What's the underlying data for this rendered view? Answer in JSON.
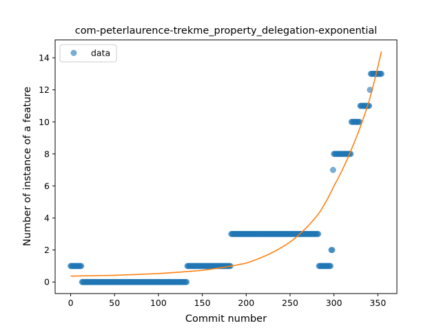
{
  "chart_data": {
    "type": "scatter",
    "title": "com-peterlaurence-trekme_property_delegation-exponential",
    "xlabel": "Commit number",
    "ylabel": "Number of instance of a feature",
    "xlim": [
      -17.7,
      371.7
    ],
    "ylim": [
      -0.72,
      15.12
    ],
    "xticks": [
      0,
      50,
      100,
      150,
      200,
      250,
      300,
      350
    ],
    "yticks": [
      0,
      2,
      4,
      6,
      8,
      10,
      12,
      14
    ],
    "legend": {
      "placement": "upper-left",
      "entries": [
        "data"
      ]
    },
    "colors": {
      "data": "#1f77b4",
      "fit": "#ff7f0e"
    },
    "data_segments": [
      {
        "x_start": 0,
        "x_end": 12,
        "y": 1
      },
      {
        "x_start": 13,
        "x_end": 132,
        "y": 0
      },
      {
        "x_start": 133,
        "x_end": 182,
        "y": 1
      },
      {
        "x_start": 183,
        "x_end": 282,
        "y": 3
      },
      {
        "x_start": 283,
        "x_end": 296,
        "y": 1
      },
      {
        "x_start": 297,
        "x_end": 298,
        "y": 2
      },
      {
        "x_start": 299,
        "x_end": 299,
        "y": 7
      },
      {
        "x_start": 300,
        "x_end": 319,
        "y": 8
      },
      {
        "x_start": 320,
        "x_end": 329,
        "y": 10
      },
      {
        "x_start": 330,
        "x_end": 340,
        "y": 11
      },
      {
        "x_start": 341,
        "x_end": 341,
        "y": 12
      },
      {
        "x_start": 342,
        "x_end": 354,
        "y": 13
      }
    ],
    "fit_curve": {
      "name": "exponential fit",
      "x": [
        0,
        50,
        100,
        150,
        183,
        200,
        250,
        283,
        300,
        320,
        340,
        354
      ],
      "y": [
        0.37,
        0.42,
        0.53,
        0.73,
        1.0,
        1.18,
        2.5,
        4.3,
        6.0,
        8.3,
        11.3,
        14.4
      ]
    }
  }
}
